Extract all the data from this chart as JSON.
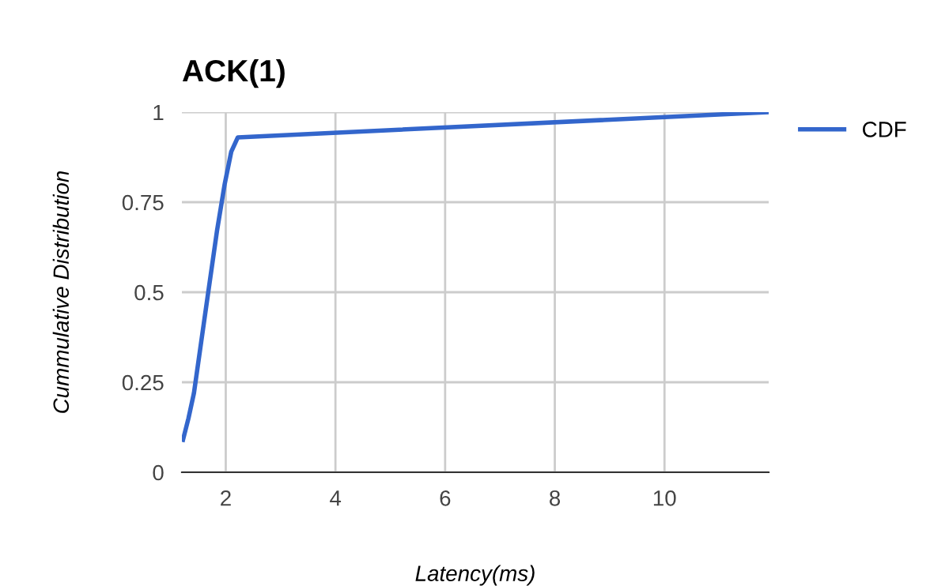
{
  "chart_data": {
    "type": "line",
    "title": "ACK(1)",
    "xlabel": "Latency(ms)",
    "ylabel": "Cummulative Distribution",
    "series": [
      {
        "name": "CDF",
        "color": "#3366cc",
        "x": [
          1.22,
          1.32,
          1.42,
          1.55,
          1.69,
          1.84,
          1.98,
          2.1,
          2.22,
          11.9
        ],
        "values": [
          0.09,
          0.15,
          0.22,
          0.36,
          0.51,
          0.67,
          0.8,
          0.89,
          0.93,
          1.0
        ]
      }
    ],
    "xlim": [
      1.2,
      11.9
    ],
    "xticks": [
      2,
      4,
      6,
      8,
      10
    ],
    "ylim": [
      0,
      1
    ],
    "yticks": [
      0,
      0.25,
      0.5,
      0.75,
      1
    ],
    "grid": true,
    "legend": "right",
    "marker": "none",
    "line_style": "solid"
  }
}
